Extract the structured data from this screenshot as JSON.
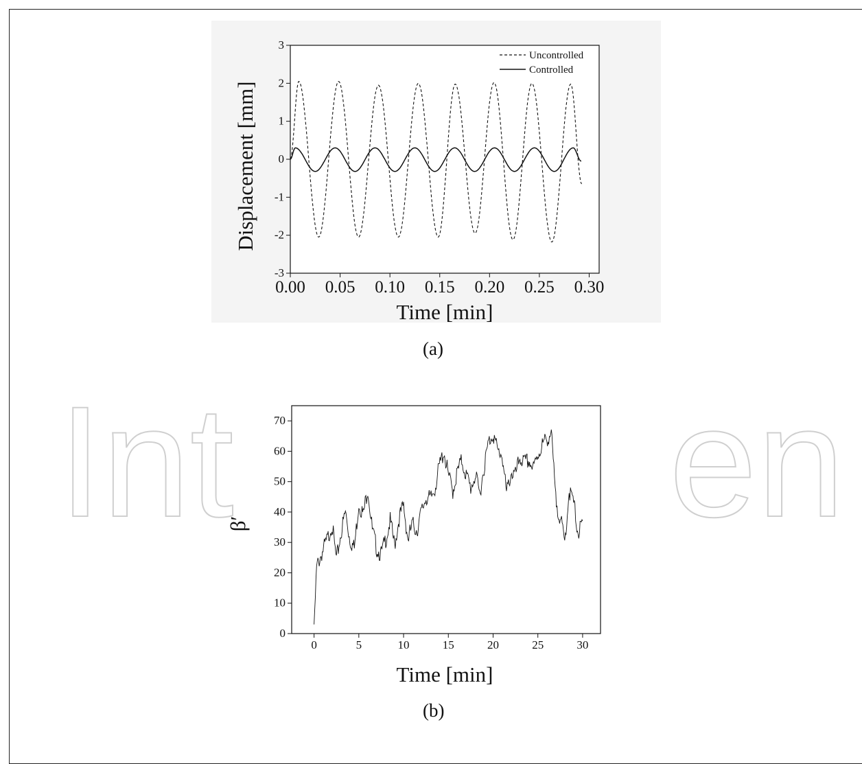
{
  "watermark": {
    "left_text": "Int",
    "right_text": "en"
  },
  "panels": [
    {
      "caption": "(a)"
    },
    {
      "caption": "(b)"
    }
  ],
  "chart_data": [
    {
      "type": "line",
      "title": "",
      "xlabel": "Time [min]",
      "ylabel": "Displacement [mm]",
      "xlim": [
        0.0,
        0.31
      ],
      "ylim": [
        -3,
        3
      ],
      "x_ticks": [
        "0.00",
        "0.05",
        "0.10",
        "0.15",
        "0.20",
        "0.25",
        "0.30"
      ],
      "y_ticks": [
        "-3",
        "-2",
        "-1",
        "0",
        "1",
        "2",
        "3"
      ],
      "legend": "top-right",
      "series": [
        {
          "name": "Uncontrolled",
          "style": "dashed",
          "x": [
            0.0,
            0.0085,
            0.0285,
            0.0485,
            0.0685,
            0.0885,
            0.1085,
            0.1285,
            0.1485,
            0.1655,
            0.1855,
            0.2045,
            0.2235,
            0.2425,
            0.2625,
            0.2815,
            0.2925
          ],
          "y": [
            0.0,
            2.05,
            -2.05,
            2.05,
            -2.05,
            1.95,
            -2.05,
            2.0,
            -2.05,
            1.98,
            -1.95,
            2.02,
            -2.12,
            2.0,
            -2.18,
            1.98,
            -0.65
          ]
        },
        {
          "name": "Controlled",
          "style": "solid",
          "x": [
            0.0,
            0.005,
            0.025,
            0.045,
            0.065,
            0.085,
            0.105,
            0.125,
            0.145,
            0.165,
            0.185,
            0.205,
            0.225,
            0.245,
            0.265,
            0.284,
            0.292
          ],
          "y": [
            0.0,
            0.3,
            -0.32,
            0.3,
            -0.32,
            0.3,
            -0.32,
            0.3,
            -0.32,
            0.3,
            -0.32,
            0.3,
            -0.32,
            0.3,
            -0.32,
            0.3,
            -0.05
          ]
        }
      ]
    },
    {
      "type": "line",
      "title": "",
      "xlabel": "Time [min]",
      "ylabel": "β′",
      "xlim": [
        -2.5,
        32
      ],
      "ylim": [
        0,
        75
      ],
      "x_ticks": [
        "0",
        "5",
        "10",
        "15",
        "20",
        "25",
        "30"
      ],
      "y_ticks": [
        "0",
        "10",
        "20",
        "30",
        "40",
        "50",
        "60",
        "70"
      ],
      "legend": "none",
      "series": [
        {
          "x": [
            0.0,
            0.3,
            0.8,
            1.5,
            2.0,
            2.5,
            3.0,
            3.5,
            4.0,
            4.5,
            5.0,
            5.5,
            6.0,
            6.5,
            7.0,
            7.5,
            8.0,
            8.5,
            9.0,
            9.5,
            10.0,
            10.5,
            11.0,
            11.5,
            12.0,
            12.5,
            13.0,
            13.5,
            14.0,
            14.5,
            15.0,
            15.5,
            16.0,
            16.5,
            17.0,
            17.5,
            18.0,
            18.5,
            19.0,
            19.5,
            20.0,
            20.5,
            21.0,
            21.5,
            22.0,
            22.5,
            23.0,
            23.5,
            24.0,
            24.5,
            25.0,
            25.5,
            26.0,
            26.5,
            27.0,
            27.5,
            28.0,
            28.5,
            29.0,
            29.5,
            30.0
          ],
          "y": [
            3,
            22,
            26,
            31,
            36,
            24,
            33,
            40,
            31,
            28,
            43,
            39,
            48,
            34,
            28,
            26,
            31,
            37,
            29,
            38,
            42,
            31,
            36,
            34,
            40,
            45,
            44,
            48,
            55,
            60,
            52,
            47,
            53,
            57,
            52,
            48,
            52,
            46,
            55,
            63,
            66,
            60,
            59,
            46,
            53,
            52,
            58,
            56,
            57,
            54,
            59,
            62,
            64,
            66,
            44,
            38,
            30,
            47,
            43,
            33,
            36
          ]
        }
      ]
    }
  ]
}
